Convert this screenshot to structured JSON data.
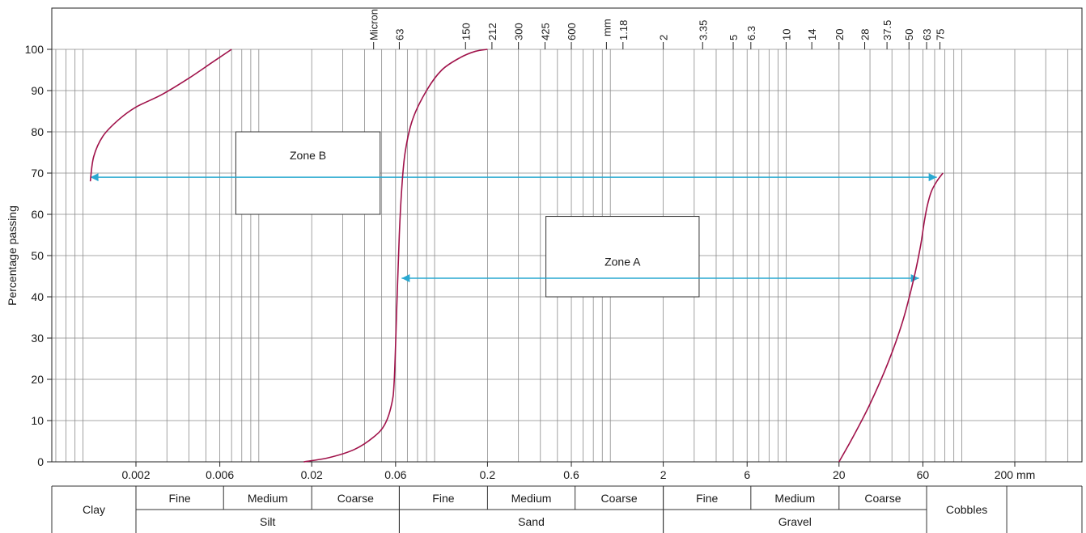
{
  "chart_data": {
    "type": "line",
    "title": "",
    "ylabel": "Percentage passing",
    "xlabel": "",
    "x_scale": "log",
    "ylim": [
      0,
      100
    ],
    "y_ticks": [
      0,
      10,
      20,
      30,
      40,
      50,
      60,
      70,
      80,
      90,
      100
    ],
    "x_tick_labels": [
      {
        "label": "0.002",
        "value": 0.002
      },
      {
        "label": "0.006",
        "value": 0.006
      },
      {
        "label": "0.02",
        "value": 0.02
      },
      {
        "label": "0.06",
        "value": 0.06
      },
      {
        "label": "0.2",
        "value": 0.2
      },
      {
        "label": "0.6",
        "value": 0.6
      },
      {
        "label": "2",
        "value": 2
      },
      {
        "label": "6",
        "value": 6
      },
      {
        "label": "20",
        "value": 20
      },
      {
        "label": "60",
        "value": 60
      },
      {
        "label": "200 mm",
        "value": 200
      }
    ],
    "sieve_labels": [
      {
        "label": "Micron",
        "value": 0.045
      },
      {
        "label": "63",
        "value": 0.063
      },
      {
        "label": "150",
        "value": 0.15
      },
      {
        "label": "212",
        "value": 0.212
      },
      {
        "label": "300",
        "value": 0.3
      },
      {
        "label": "425",
        "value": 0.425
      },
      {
        "label": "600",
        "value": 0.6
      },
      {
        "label": "mm",
        "value": 0.95
      },
      {
        "label": "1.18",
        "value": 1.18
      },
      {
        "label": "2",
        "value": 2
      },
      {
        "label": "3.35",
        "value": 3.35
      },
      {
        "label": "5",
        "value": 5
      },
      {
        "label": "6.3",
        "value": 6.3
      },
      {
        "label": "10",
        "value": 10
      },
      {
        "label": "14",
        "value": 14
      },
      {
        "label": "20",
        "value": 20
      },
      {
        "label": "28",
        "value": 28
      },
      {
        "label": "37.5",
        "value": 37.5
      },
      {
        "label": "50",
        "value": 50
      },
      {
        "label": "63",
        "value": 63
      },
      {
        "label": "75",
        "value": 75
      }
    ],
    "series": [
      {
        "color": "#a0124a",
        "x": [
          0.0011,
          0.00115,
          0.0013,
          0.0016,
          0.002,
          0.0028,
          0.004,
          0.0055,
          0.007
        ],
        "y": [
          68,
          74,
          79,
          83,
          86,
          89,
          93,
          97,
          100
        ]
      },
      {
        "color": "#a0124a",
        "x": [
          0.018,
          0.025,
          0.035,
          0.045,
          0.052,
          0.057,
          0.059,
          0.061,
          0.063,
          0.065,
          0.068,
          0.075,
          0.09,
          0.11,
          0.14,
          0.17,
          0.2
        ],
        "y": [
          0,
          1,
          3,
          6,
          9,
          14,
          20,
          38,
          55,
          66,
          75,
          83,
          90,
          95,
          98,
          99.5,
          100
        ]
      },
      {
        "color": "#a0124a",
        "x": [
          20,
          24,
          30,
          38,
          46,
          53,
          58,
          61,
          63.5,
          67,
          72,
          78
        ],
        "y": [
          0,
          6,
          14,
          24,
          34,
          44,
          52,
          58,
          62,
          65.5,
          68,
          70
        ]
      }
    ],
    "arrows": [
      {
        "color": "#29a9d1",
        "x1": 0.0011,
        "x2": 72,
        "y": 69
      },
      {
        "color": "#29a9d1",
        "x1": 0.065,
        "x2": 57,
        "y": 44.5
      }
    ],
    "annotations": [
      {
        "label": "Zone B",
        "x1": 0.0074,
        "x2": 0.049,
        "y1": 60,
        "y2": 80
      },
      {
        "label": "Zone  A",
        "x1": 0.43,
        "x2": 3.2,
        "y1": 40,
        "y2": 59.5
      }
    ],
    "classification": {
      "sub_row": [
        {
          "label": "Fine",
          "x1": 0.002,
          "x2": 0.0063
        },
        {
          "label": "Medium",
          "x1": 0.0063,
          "x2": 0.02
        },
        {
          "label": "Coarse",
          "x1": 0.02,
          "x2": 0.063
        },
        {
          "label": "Fine",
          "x1": 0.063,
          "x2": 0.2
        },
        {
          "label": "Medium",
          "x1": 0.2,
          "x2": 0.63
        },
        {
          "label": "Coarse",
          "x1": 0.63,
          "x2": 2
        },
        {
          "label": "Fine",
          "x1": 2,
          "x2": 6.3
        },
        {
          "label": "Medium",
          "x1": 6.3,
          "x2": 20
        },
        {
          "label": "Coarse",
          "x1": 20,
          "x2": 63
        }
      ],
      "main_row": [
        {
          "label": "Silt",
          "x1": 0.002,
          "x2": 0.063
        },
        {
          "label": "Sand",
          "x1": 0.063,
          "x2": 2
        },
        {
          "label": "Gravel",
          "x1": 2,
          "x2": 63
        }
      ],
      "spanning": [
        {
          "label": "Clay",
          "x1": 0.00063,
          "x2": 0.002
        },
        {
          "label": "Cobbles",
          "x1": 63,
          "x2": 180
        }
      ]
    }
  }
}
